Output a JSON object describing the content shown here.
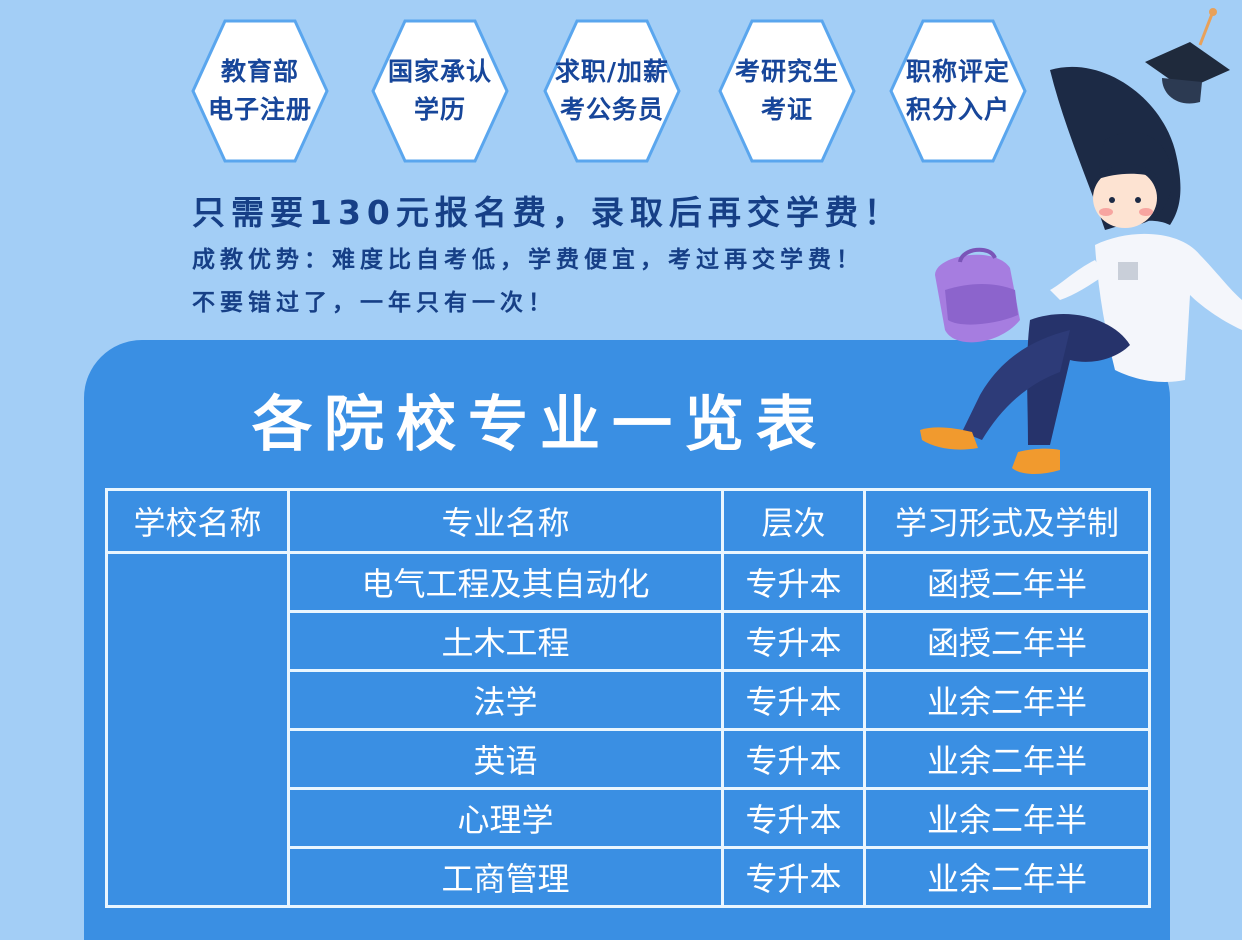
{
  "badges": [
    {
      "line1": "教育部",
      "line2": "电子注册"
    },
    {
      "line1": "国家承认",
      "line2": "学历"
    },
    {
      "line1": "求职/加薪",
      "line2": "考公务员"
    },
    {
      "line1": "考研究生",
      "line2": "考证"
    },
    {
      "line1": "职称评定",
      "line2": "积分入户"
    }
  ],
  "headline": "只需要130元报名费，录取后再交学费！",
  "advantages": "成教优势：难度比自考低，学费便宜，考过再交学费！",
  "reminder": "不要错过了，一年只有一次！",
  "panel_title": "各院校专业一览表",
  "table": {
    "headers": [
      "学校名称",
      "专业名称",
      "层次",
      "学习形式及学制"
    ],
    "school": "",
    "rows": [
      {
        "major": "电气工程及其自动化",
        "level": "专升本",
        "form": "函授二年半"
      },
      {
        "major": "土木工程",
        "level": "专升本",
        "form": "函授二年半"
      },
      {
        "major": "法学",
        "level": "专升本",
        "form": "业余二年半"
      },
      {
        "major": "英语",
        "level": "专升本",
        "form": "业余二年半"
      },
      {
        "major": "心理学",
        "level": "专升本",
        "form": "业余二年半"
      },
      {
        "major": "工商管理",
        "level": "专升本",
        "form": "业余二年半"
      }
    ]
  },
  "colors": {
    "background": "#a3cef6",
    "panel": "#3a8fe3",
    "badge_text": "#17469a",
    "badge_border": "#ffffff",
    "table_line": "#e9f6ff"
  },
  "icons": [
    "graduation-cap-icon",
    "student-illustration",
    "backpack-icon"
  ]
}
